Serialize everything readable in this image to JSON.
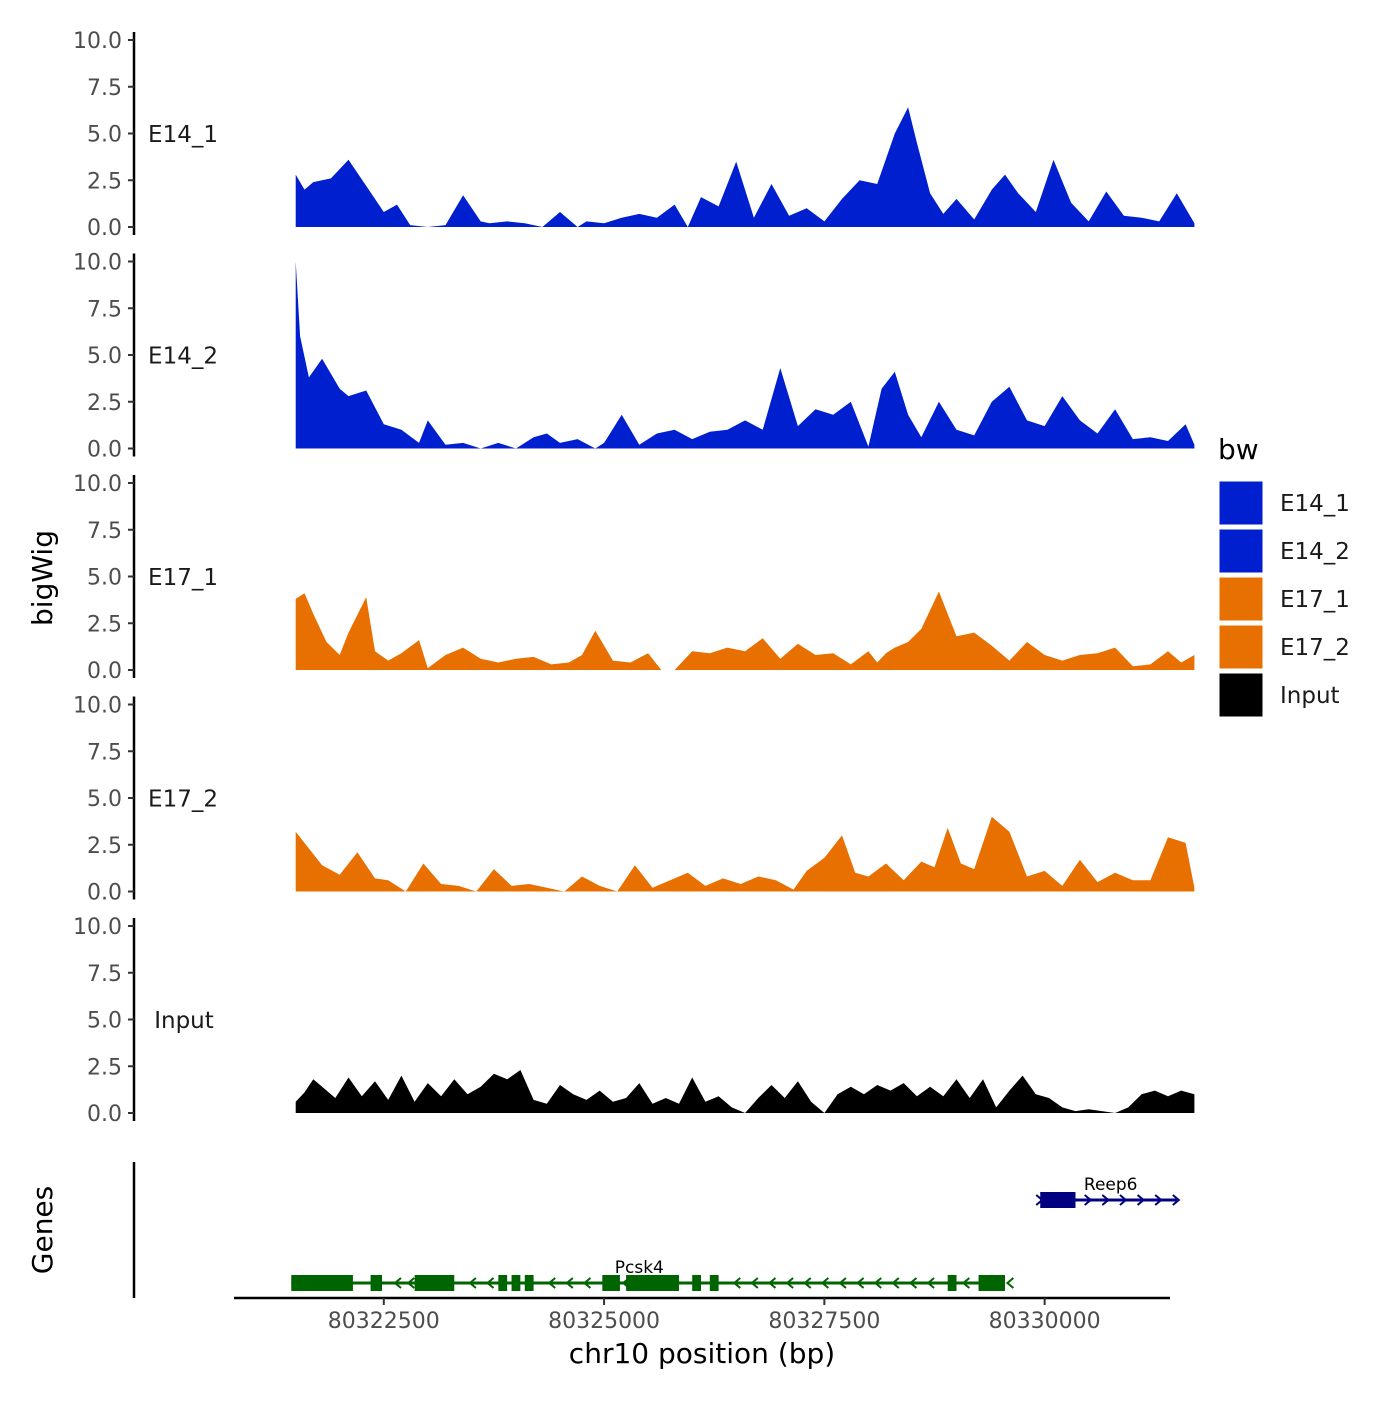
{
  "chart_data": {
    "type": "area",
    "ylabel": "bigWig",
    "xlabel": "chr10 position (bp)",
    "genes_label": "Genes",
    "xlim": [
      80320800,
      80331400
    ],
    "x_ticks": [
      80322500,
      80325000,
      80327500,
      80330000
    ],
    "x_tick_labels": [
      "80322500",
      "80325000",
      "80327500",
      "80330000"
    ],
    "ylim": [
      0,
      10
    ],
    "y_ticks": [
      0,
      2.5,
      5,
      7.5,
      10
    ],
    "y_tick_labels": [
      "0.0",
      "2.5",
      "5.0",
      "7.5",
      "10.0"
    ],
    "signal_range": [
      80321500,
      80331700
    ],
    "tracks": [
      {
        "name": "E14_1",
        "color": "#0020D0",
        "x": [
          80321500,
          80321600,
          80321700,
          80321900,
          80322100,
          80322300,
          80322500,
          80322650,
          80322800,
          80323000,
          80323200,
          80323400,
          80323600,
          80323700,
          80323900,
          80324100,
          80324300,
          80324500,
          80324700,
          80324800,
          80325000,
          80325200,
          80325400,
          80325600,
          80325800,
          80325950,
          80326100,
          80326300,
          80326500,
          80326700,
          80326900,
          80327100,
          80327300,
          80327500,
          80327700,
          80327900,
          80328100,
          80328300,
          80328450,
          80328550,
          80328700,
          80328850,
          80329000,
          80329200,
          80329400,
          80329550,
          80329700,
          80329900,
          80330100,
          80330300,
          80330500,
          80330700,
          80330900,
          80331100,
          80331300,
          80331500,
          80331700
        ],
        "values": [
          2.8,
          2.0,
          2.4,
          2.6,
          3.6,
          2.2,
          0.8,
          1.2,
          0.1,
          0.0,
          0.1,
          1.7,
          0.3,
          0.2,
          0.3,
          0.2,
          0.0,
          0.8,
          0.0,
          0.3,
          0.2,
          0.5,
          0.7,
          0.5,
          1.2,
          0.0,
          1.6,
          1.1,
          3.5,
          0.5,
          2.3,
          0.6,
          1.0,
          0.3,
          1.5,
          2.5,
          2.3,
          5.0,
          6.4,
          4.5,
          1.8,
          0.7,
          1.5,
          0.4,
          2.0,
          2.8,
          1.8,
          0.8,
          3.6,
          1.3,
          0.3,
          1.9,
          0.6,
          0.5,
          0.3,
          1.8,
          0.2
        ]
      },
      {
        "name": "E14_2",
        "color": "#0020D0",
        "x": [
          80321500,
          80321550,
          80321650,
          80321800,
          80322000,
          80322100,
          80322300,
          80322500,
          80322700,
          80322900,
          80323000,
          80323200,
          80323400,
          80323600,
          80323800,
          80324000,
          80324200,
          80324350,
          80324500,
          80324700,
          80324900,
          80325000,
          80325200,
          80325400,
          80325600,
          80325800,
          80326000,
          80326200,
          80326400,
          80326600,
          80326800,
          80327000,
          80327200,
          80327400,
          80327600,
          80327800,
          80328000,
          80328150,
          80328300,
          80328450,
          80328600,
          80328800,
          80329000,
          80329200,
          80329400,
          80329600,
          80329800,
          80330000,
          80330200,
          80330400,
          80330600,
          80330800,
          80331000,
          80331200,
          80331400,
          80331600,
          80331700
        ],
        "values": [
          10.0,
          6.0,
          3.8,
          4.8,
          3.2,
          2.8,
          3.1,
          1.3,
          1.0,
          0.3,
          1.5,
          0.2,
          0.3,
          0.0,
          0.3,
          0.0,
          0.6,
          0.8,
          0.3,
          0.5,
          0.0,
          0.3,
          1.8,
          0.2,
          0.8,
          1.0,
          0.5,
          0.9,
          1.0,
          1.5,
          1.0,
          4.3,
          1.2,
          2.1,
          1.8,
          2.5,
          0.1,
          3.2,
          4.1,
          1.8,
          0.6,
          2.5,
          1.0,
          0.7,
          2.5,
          3.3,
          1.5,
          1.2,
          2.8,
          1.5,
          0.8,
          2.1,
          0.5,
          0.6,
          0.4,
          1.3,
          0.2
        ]
      },
      {
        "name": "E17_1",
        "color": "#E87000",
        "x": [
          80321500,
          80321600,
          80321700,
          80321850,
          80322000,
          80322100,
          80322300,
          80322400,
          80322550,
          80322700,
          80322900,
          80323000,
          80323200,
          80323400,
          80323600,
          80323800,
          80324000,
          80324200,
          80324400,
          80324600,
          80324750,
          80324900,
          80325100,
          80325300,
          80325500,
          80325650,
          80325800,
          80326000,
          80326200,
          80326400,
          80326600,
          80326800,
          80327000,
          80327200,
          80327400,
          80327600,
          80327800,
          80328000,
          80328100,
          80328200,
          80328300,
          80328450,
          80328600,
          80328800,
          80329000,
          80329200,
          80329400,
          80329600,
          80329800,
          80330000,
          80330200,
          80330400,
          80330600,
          80330800,
          80331000,
          80331200,
          80331400,
          80331550,
          80331700
        ],
        "values": [
          3.8,
          4.1,
          3.0,
          1.5,
          0.8,
          2.0,
          3.9,
          1.0,
          0.5,
          0.9,
          1.6,
          0.1,
          0.8,
          1.2,
          0.6,
          0.4,
          0.6,
          0.7,
          0.3,
          0.4,
          0.8,
          2.1,
          0.5,
          0.4,
          0.9,
          0.0,
          0.0,
          1.0,
          0.9,
          1.2,
          1.0,
          1.7,
          0.6,
          1.4,
          0.8,
          0.9,
          0.3,
          1.0,
          0.4,
          0.9,
          1.2,
          1.5,
          2.2,
          4.2,
          1.8,
          2.0,
          1.3,
          0.5,
          1.5,
          0.8,
          0.5,
          0.8,
          0.9,
          1.2,
          0.2,
          0.3,
          1.0,
          0.4,
          0.8
        ]
      },
      {
        "name": "E17_2",
        "color": "#E87000",
        "x": [
          80321500,
          80321650,
          80321800,
          80322000,
          80322200,
          80322400,
          80322550,
          80322750,
          80322950,
          80323150,
          80323350,
          80323550,
          80323750,
          80323950,
          80324150,
          80324350,
          80324550,
          80324750,
          80324950,
          80325150,
          80325350,
          80325550,
          80325750,
          80325950,
          80326150,
          80326350,
          80326550,
          80326750,
          80326950,
          80327150,
          80327300,
          80327500,
          80327700,
          80327850,
          80328000,
          80328200,
          80328400,
          80328600,
          80328750,
          80328900,
          80329050,
          80329200,
          80329400,
          80329600,
          80329800,
          80330000,
          80330200,
          80330400,
          80330600,
          80330800,
          80331000,
          80331200,
          80331400,
          80331600,
          80331700
        ],
        "values": [
          3.2,
          2.3,
          1.4,
          0.9,
          2.1,
          0.7,
          0.6,
          0.0,
          1.5,
          0.4,
          0.3,
          0.0,
          1.2,
          0.3,
          0.4,
          0.2,
          0.0,
          0.8,
          0.3,
          0.0,
          1.4,
          0.2,
          0.6,
          1.0,
          0.3,
          0.7,
          0.4,
          0.8,
          0.6,
          0.1,
          1.1,
          1.8,
          3.0,
          1.0,
          0.8,
          1.5,
          0.6,
          1.6,
          1.3,
          3.4,
          1.5,
          1.2,
          4.0,
          3.2,
          0.8,
          1.1,
          0.3,
          1.7,
          0.5,
          1.0,
          0.6,
          0.6,
          2.9,
          2.6,
          0.2
        ]
      },
      {
        "name": "Input",
        "color": "#000000",
        "x": [
          80321500,
          80321600,
          80321700,
          80321800,
          80321950,
          80322100,
          80322250,
          80322400,
          80322550,
          80322700,
          80322850,
          80323000,
          80323150,
          80323300,
          80323450,
          80323600,
          80323750,
          80323900,
          80324050,
          80324200,
          80324350,
          80324500,
          80324650,
          80324800,
          80324950,
          80325100,
          80325250,
          80325400,
          80325550,
          80325700,
          80325850,
          80326000,
          80326150,
          80326300,
          80326450,
          80326600,
          80326750,
          80326900,
          80327050,
          80327200,
          80327350,
          80327500,
          80327650,
          80327800,
          80327950,
          80328100,
          80328250,
          80328400,
          80328550,
          80328700,
          80328850,
          80329000,
          80329150,
          80329300,
          80329450,
          80329600,
          80329750,
          80329900,
          80330050,
          80330200,
          80330350,
          80330500,
          80330650,
          80330800,
          80330950,
          80331100,
          80331250,
          80331400,
          80331550,
          80331700
        ],
        "values": [
          0.6,
          1.1,
          1.8,
          1.4,
          0.8,
          1.9,
          0.9,
          1.7,
          0.7,
          2.0,
          0.6,
          1.6,
          0.9,
          1.8,
          1.0,
          1.4,
          2.1,
          1.8,
          2.3,
          0.7,
          0.5,
          1.5,
          1.0,
          0.7,
          1.2,
          0.6,
          0.8,
          1.6,
          0.5,
          0.8,
          0.5,
          1.9,
          0.6,
          0.9,
          0.3,
          0.0,
          0.8,
          1.5,
          0.8,
          1.7,
          0.6,
          0.0,
          1.0,
          1.4,
          1.0,
          1.5,
          1.2,
          1.6,
          0.9,
          1.4,
          0.9,
          1.8,
          0.8,
          1.8,
          0.3,
          1.2,
          2.0,
          1.0,
          0.8,
          0.3,
          0.1,
          0.2,
          0.1,
          0.0,
          0.3,
          1.0,
          1.2,
          0.9,
          1.2,
          1.0
        ]
      }
    ],
    "legend": {
      "title": "bw",
      "entries": [
        {
          "label": "E14_1",
          "color": "#0020D0"
        },
        {
          "label": "E14_2",
          "color": "#0020D0"
        },
        {
          "label": "E17_1",
          "color": "#E87000"
        },
        {
          "label": "E17_2",
          "color": "#E87000"
        },
        {
          "label": "Input",
          "color": "#000000"
        }
      ]
    },
    "genes": [
      {
        "name": "Reep6",
        "strand": "+",
        "color": "#000080",
        "start": 80329950,
        "end": 80331500,
        "exons": [
          [
            80329950,
            80330350
          ]
        ],
        "arrows": [
          80329950,
          80330500,
          80330700,
          80330900,
          80331100,
          80331300,
          80331500
        ]
      },
      {
        "name": "Pcsk4",
        "strand": "-",
        "color": "#006400",
        "start": 80321450,
        "end": 80329550,
        "exons": [
          [
            80321450,
            80322150
          ],
          [
            80322350,
            80322480
          ],
          [
            80322850,
            80323300
          ],
          [
            80323800,
            80323900
          ],
          [
            80323950,
            80324050
          ],
          [
            80324100,
            80324200
          ],
          [
            80324980,
            80325180
          ],
          [
            80325250,
            80325850
          ],
          [
            80326000,
            80326100
          ],
          [
            80326200,
            80326300
          ],
          [
            80328900,
            80329000
          ],
          [
            80329250,
            80329550
          ]
        ],
        "arrows": [
          80322650,
          80322800,
          80323500,
          80323700,
          80324400,
          80324600,
          80324800,
          80325240,
          80326500,
          80326700,
          80326900,
          80327100,
          80327300,
          80327500,
          80327700,
          80327900,
          80328100,
          80328300,
          80328500,
          80328700,
          80329100,
          80329600
        ]
      }
    ]
  }
}
